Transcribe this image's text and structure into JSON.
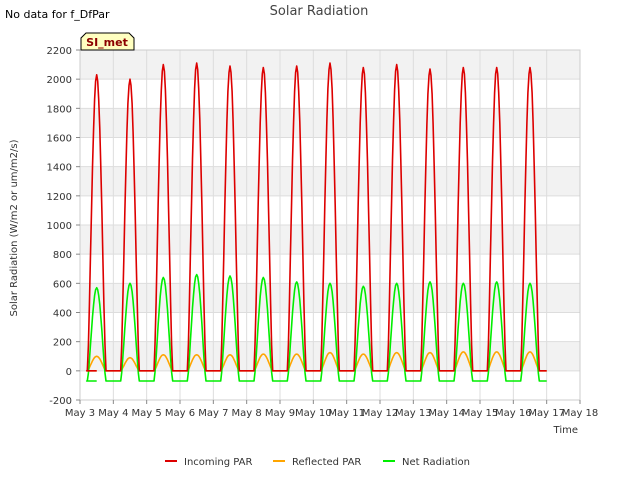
{
  "chart_data": {
    "type": "line",
    "title": "Solar Radiation",
    "no_data_note": "No data for f_DfPar",
    "site_badge": "SI_met",
    "xlabel": "Time",
    "ylabel": "Solar Radiation (W/m2 or um/m2/s)",
    "xlim": [
      3,
      18
    ],
    "ylim": [
      -200,
      2200
    ],
    "x_ticks": [
      3,
      4,
      5,
      6,
      7,
      8,
      9,
      10,
      11,
      12,
      13,
      14,
      15,
      16,
      17,
      18
    ],
    "x_tick_labels": [
      "May 3",
      "May 4",
      "May 5",
      "May 6",
      "May 7",
      "May 8",
      "May 9",
      "May 10",
      "May 11",
      "May 12",
      "May 13",
      "May 14",
      "May 15",
      "May 16",
      "May 17",
      "May 18"
    ],
    "y_ticks": [
      -200,
      0,
      200,
      400,
      600,
      800,
      1000,
      1200,
      1400,
      1600,
      1800,
      2000,
      2200
    ],
    "y_tick_labels": [
      "-200",
      "0",
      "200",
      "400",
      "600",
      "800",
      "1000",
      "1200",
      "1400",
      "1600",
      "1800",
      "2000",
      "2200"
    ],
    "grid": true,
    "legend_position": "bottom",
    "days": [
      3.5,
      4.5,
      5.5,
      6.5,
      7.5,
      8.5,
      9.5,
      10.5,
      11.5,
      12.5,
      13.5,
      14.5,
      15.5,
      16.5
    ],
    "series": [
      {
        "name": "Incoming PAR",
        "color": "#dd0000",
        "daily_peak": [
          2030,
          2000,
          2100,
          2110,
          2090,
          2080,
          2090,
          2110,
          2080,
          2100,
          2070,
          2080,
          2080,
          2080
        ],
        "night_value": 0
      },
      {
        "name": "Reflected PAR",
        "color": "#ffa500",
        "daily_peak": [
          100,
          90,
          110,
          110,
          110,
          115,
          115,
          125,
          115,
          125,
          125,
          130,
          130,
          130
        ],
        "night_value": 0
      },
      {
        "name": "Net Radiation",
        "color": "#00ee00",
        "daily_peak": [
          570,
          600,
          640,
          660,
          650,
          640,
          610,
          600,
          580,
          600,
          610,
          600,
          610,
          600
        ],
        "night_value": -70
      }
    ]
  }
}
